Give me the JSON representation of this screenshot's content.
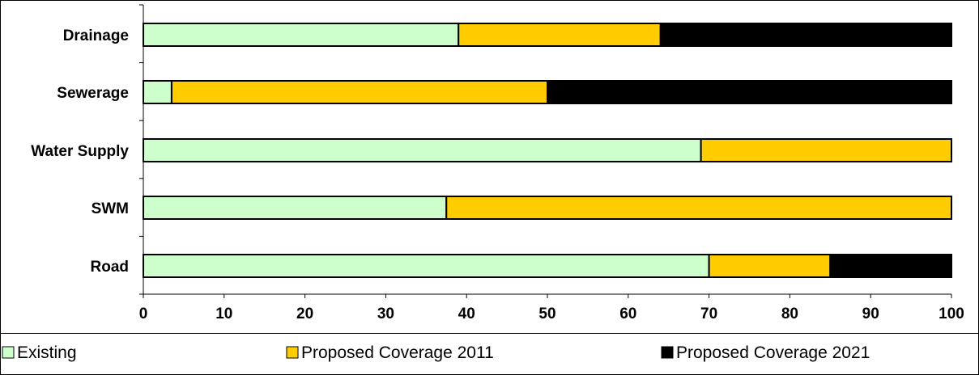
{
  "chart_data": {
    "type": "bar",
    "orientation": "horizontal",
    "stacked": true,
    "categories": [
      "Drainage",
      "Sewerage",
      "Water Supply",
      "SWM",
      "Road"
    ],
    "series": [
      {
        "name": "Existing",
        "color": "#ccffcc",
        "values": [
          39,
          3.5,
          69,
          37.5,
          70
        ]
      },
      {
        "name": "Proposed Coverage 2011",
        "color": "#ffcc00",
        "values": [
          25,
          46.5,
          31,
          62.5,
          15
        ]
      },
      {
        "name": "Proposed Coverage 2021",
        "color": "#000000",
        "values": [
          36,
          50,
          0,
          0,
          15
        ]
      }
    ],
    "x_ticks": [
      "0",
      "10",
      "20",
      "30",
      "40",
      "50",
      "60",
      "70",
      "80",
      "90",
      "100"
    ],
    "xlim": [
      0,
      100
    ],
    "grid": false,
    "legend_position": "bottom"
  }
}
